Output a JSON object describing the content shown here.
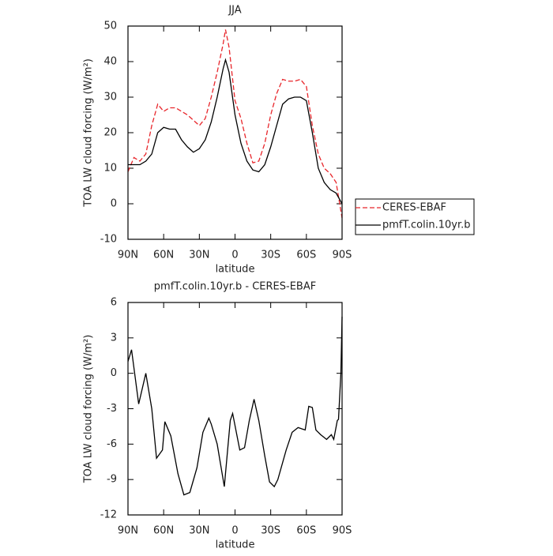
{
  "chart_data": [
    {
      "type": "line",
      "title": "JJA",
      "xlabel": "latitude",
      "ylabel": "TOA LW cloud forcing (W/m²)",
      "xlim": [
        90,
        -90
      ],
      "xticks": [
        {
          "value": 90,
          "label": "90N"
        },
        {
          "value": 60,
          "label": "60N"
        },
        {
          "value": 30,
          "label": "30N"
        },
        0,
        {
          "value": -30,
          "label": "30S"
        },
        {
          "value": -60,
          "label": "60S"
        },
        {
          "value": -90,
          "label": "90S"
        }
      ],
      "ylim": [
        -10,
        50
      ],
      "yticks": [
        -10,
        0,
        10,
        20,
        30,
        40,
        50
      ],
      "legend": "right",
      "x": [
        90,
        85,
        80,
        75,
        70,
        65,
        60,
        55,
        50,
        45,
        40,
        35,
        30,
        25,
        20,
        15,
        10,
        8,
        5,
        0,
        -5,
        -10,
        -15,
        -20,
        -25,
        -30,
        -35,
        -40,
        -45,
        -50,
        -55,
        -60,
        -65,
        -70,
        -75,
        -80,
        -85,
        -90
      ],
      "series": [
        {
          "name": "CERES-EBAF",
          "color": "#e8262b",
          "line_style": "dashed",
          "values": [
            9,
            13,
            12,
            14,
            22,
            28,
            26,
            27,
            27,
            26,
            25,
            23.5,
            22,
            24,
            30,
            37,
            45,
            49,
            44,
            29,
            24,
            17,
            11.5,
            12,
            17,
            25,
            31,
            35,
            34.5,
            34.5,
            35,
            33,
            22,
            14,
            10,
            8.5,
            6,
            -4
          ]
        },
        {
          "name": "pmfT.colin.10yr.b",
          "color": "#000000",
          "line_style": "solid",
          "values": [
            11,
            11,
            11,
            12,
            14,
            20,
            21.5,
            21,
            21,
            18,
            16,
            14.5,
            15.5,
            18,
            23,
            30,
            38,
            40.5,
            37,
            25,
            17,
            12,
            9.5,
            9,
            11,
            16,
            22,
            28,
            29.5,
            30,
            30,
            29,
            20,
            10,
            6,
            4,
            3,
            0
          ]
        }
      ]
    },
    {
      "type": "line",
      "title": "pmfT.colin.10yr.b - CERES-EBAF",
      "xlabel": "latitude",
      "ylabel": "TOA LW cloud forcing (W/m²)",
      "xlim": [
        90,
        -90
      ],
      "xticks": [
        {
          "value": 90,
          "label": "90N"
        },
        {
          "value": 60,
          "label": "60N"
        },
        {
          "value": 30,
          "label": "30N"
        },
        0,
        {
          "value": -30,
          "label": "30S"
        },
        {
          "value": -60,
          "label": "60S"
        },
        {
          "value": -90,
          "label": "90S"
        }
      ],
      "ylim": [
        -12,
        6
      ],
      "yticks": [
        -12,
        -9,
        -6,
        -3,
        0,
        3,
        6
      ],
      "x": [
        90,
        87,
        81,
        75,
        70,
        66,
        61,
        59,
        54,
        48,
        43,
        38,
        32,
        27,
        22,
        20,
        15,
        9,
        4,
        2,
        -4,
        -8,
        -12,
        -16,
        -20,
        -25,
        -29,
        -33,
        -36,
        -43,
        -48,
        -53,
        -59,
        -62,
        -65,
        -68,
        -72,
        -77,
        -81,
        -83,
        -86,
        -87,
        -89,
        -90
      ],
      "series": [
        {
          "color": "#000000",
          "line_style": "solid",
          "values": [
            1,
            2,
            -2.6,
            0,
            -3,
            -7.2,
            -6.5,
            -4.1,
            -5.3,
            -8.5,
            -10.3,
            -10.1,
            -8,
            -5,
            -3.8,
            -4.3,
            -6,
            -9.6,
            -4,
            -3.4,
            -6.5,
            -6.3,
            -4,
            -2.2,
            -4,
            -7,
            -9.2,
            -9.6,
            -9,
            -6.5,
            -5,
            -4.6,
            -4.8,
            -2.8,
            -2.9,
            -4.8,
            -5.2,
            -5.6,
            -5.2,
            -5.6,
            -4,
            -3.9,
            0,
            4.8
          ]
        }
      ]
    }
  ]
}
